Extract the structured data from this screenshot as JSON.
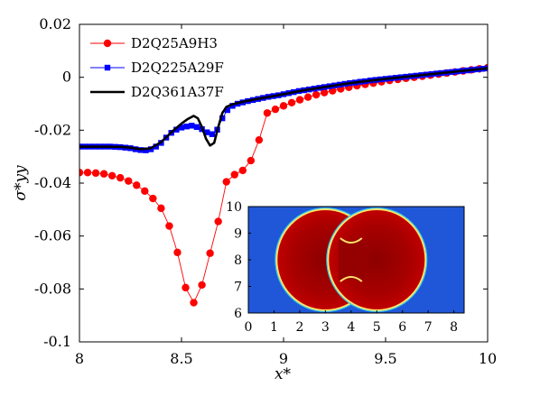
{
  "chart_data": {
    "type": "line",
    "xlabel": "x*",
    "ylabel": "σ*yy",
    "xlim": [
      8,
      10
    ],
    "ylim": [
      -0.1,
      0.02
    ],
    "x_ticks": [
      "8",
      "8.5",
      "9",
      "9.5",
      "10"
    ],
    "y_ticks": [
      "0.02",
      "0",
      "-0.02",
      "-0.04",
      "-0.06",
      "-0.08",
      "-0.1"
    ],
    "legend_position": "top-left",
    "colors": {
      "red": "#ff0000",
      "blue": "#0000ff",
      "black": "#000000"
    },
    "series": [
      {
        "name": "D2Q25A9H3",
        "color": "#ff0000",
        "marker": "circle",
        "x": [
          8.0,
          8.04,
          8.08,
          8.12,
          8.16,
          8.2,
          8.24,
          8.28,
          8.32,
          8.36,
          8.4,
          8.44,
          8.48,
          8.52,
          8.56,
          8.6,
          8.64,
          8.68,
          8.72,
          8.76,
          8.8,
          8.84,
          8.88,
          8.92,
          8.96,
          9.0,
          9.04,
          9.08,
          9.12,
          9.16,
          9.2,
          9.24,
          9.28,
          9.32,
          9.36,
          9.4,
          9.44,
          9.48,
          9.52,
          9.56,
          9.6,
          9.64,
          9.68,
          9.72,
          9.76,
          9.8,
          9.84,
          9.88,
          9.92,
          9.96,
          10.0
        ],
        "y": [
          -0.036,
          -0.036,
          -0.0362,
          -0.0365,
          -0.0372,
          -0.038,
          -0.0392,
          -0.0408,
          -0.043,
          -0.0458,
          -0.0495,
          -0.0562,
          -0.0662,
          -0.0795,
          -0.0852,
          -0.0785,
          -0.0665,
          -0.0545,
          -0.0395,
          -0.0368,
          -0.0352,
          -0.0315,
          -0.0237,
          -0.0135,
          -0.0121,
          -0.0108,
          -0.0096,
          -0.0085,
          -0.0075,
          -0.0066,
          -0.0058,
          -0.0051,
          -0.0044,
          -0.0038,
          -0.0032,
          -0.0027,
          -0.0022,
          -0.0017,
          -0.0012,
          -0.0008,
          -0.0004,
          0.0,
          0.0004,
          0.0008,
          0.0012,
          0.0016,
          0.002,
          0.0024,
          0.0028,
          0.0032,
          0.0036
        ]
      },
      {
        "name": "D2Q225A29F",
        "color": "#0000ff",
        "marker": "square",
        "x": [
          8.0,
          8.025,
          8.05,
          8.075,
          8.1,
          8.125,
          8.15,
          8.175,
          8.2,
          8.225,
          8.25,
          8.275,
          8.3,
          8.325,
          8.35,
          8.375,
          8.4,
          8.425,
          8.45,
          8.475,
          8.5,
          8.525,
          8.55,
          8.575,
          8.6,
          8.625,
          8.65,
          8.675,
          8.7,
          8.725,
          8.75,
          8.775,
          8.8,
          8.825,
          8.85,
          8.875,
          8.9,
          8.925,
          8.95,
          8.975,
          9.0,
          9.025,
          9.05,
          9.075,
          9.1,
          9.125,
          9.15,
          9.175,
          9.2,
          9.225,
          9.25,
          9.275,
          9.3,
          9.325,
          9.35,
          9.375,
          9.4,
          9.425,
          9.45,
          9.475,
          9.5,
          9.525,
          9.55,
          9.575,
          9.6,
          9.625,
          9.65,
          9.675,
          9.7,
          9.725,
          9.75,
          9.775,
          9.8,
          9.825,
          9.85,
          9.875,
          9.9,
          9.925,
          9.95,
          9.975,
          10.0
        ],
        "y": [
          -0.0262,
          -0.0262,
          -0.0262,
          -0.0262,
          -0.0262,
          -0.0262,
          -0.0262,
          -0.0263,
          -0.0264,
          -0.0266,
          -0.0268,
          -0.0272,
          -0.0275,
          -0.0276,
          -0.0272,
          -0.0262,
          -0.0248,
          -0.0228,
          -0.021,
          -0.0198,
          -0.019,
          -0.0186,
          -0.0183,
          -0.0188,
          -0.0196,
          -0.0208,
          -0.0215,
          -0.0198,
          -0.0155,
          -0.0124,
          -0.0108,
          -0.01,
          -0.0095,
          -0.009,
          -0.0086,
          -0.0082,
          -0.0078,
          -0.0074,
          -0.0071,
          -0.0068,
          -0.0064,
          -0.006,
          -0.0056,
          -0.0052,
          -0.0049,
          -0.0046,
          -0.0043,
          -0.004,
          -0.0037,
          -0.0034,
          -0.0031,
          -0.0028,
          -0.0025,
          -0.0022,
          -0.002,
          -0.0017,
          -0.0015,
          -0.0012,
          -0.001,
          -0.0008,
          -0.0006,
          -0.0004,
          -0.0002,
          0.0,
          0.0002,
          0.0004,
          0.0006,
          0.0008,
          0.001,
          0.0012,
          0.0014,
          0.0016,
          0.0018,
          0.002,
          0.0022,
          0.0024,
          0.0026,
          0.0028,
          0.003,
          0.0032,
          0.0034
        ]
      },
      {
        "name": "D2Q361A37F",
        "color": "#000000",
        "marker": "none",
        "x": [
          8.0,
          8.1,
          8.2,
          8.25,
          8.3,
          8.35,
          8.4,
          8.45,
          8.5,
          8.53,
          8.56,
          8.58,
          8.6,
          8.62,
          8.64,
          8.66,
          8.68,
          8.7,
          8.72,
          8.75,
          8.8,
          8.85,
          8.9,
          9.0,
          9.1,
          9.2,
          9.3,
          9.4,
          9.5,
          9.6,
          9.7,
          9.8,
          9.9,
          10.0
        ],
        "y": [
          -0.0262,
          -0.0262,
          -0.0263,
          -0.0266,
          -0.0272,
          -0.0268,
          -0.0245,
          -0.0208,
          -0.0175,
          -0.0158,
          -0.0146,
          -0.0155,
          -0.0188,
          -0.0232,
          -0.0258,
          -0.0248,
          -0.0188,
          -0.0135,
          -0.0112,
          -0.0102,
          -0.0093,
          -0.0085,
          -0.0078,
          -0.0064,
          -0.0049,
          -0.0037,
          -0.0025,
          -0.0015,
          -0.0006,
          0.0002,
          0.001,
          0.0018,
          0.0026,
          0.0034
        ]
      }
    ],
    "inset": {
      "type": "heatmap",
      "x_ticks": [
        "0",
        "1",
        "2",
        "3",
        "4",
        "5",
        "6",
        "7",
        "8"
      ],
      "y_ticks": [
        "10",
        "9",
        "8",
        "7",
        "6"
      ],
      "xlim": [
        0,
        8.4
      ],
      "ylim": [
        6,
        10
      ],
      "droplets": [
        {
          "center_x": 3.0,
          "center_y": 8.0,
          "radius": 1.9
        },
        {
          "center_x": 5.0,
          "center_y": 8.0,
          "radius": 1.9
        }
      ],
      "colors": {
        "background": "#1f57d8",
        "droplet": "#b80000",
        "rim": "#ffe36a"
      }
    }
  }
}
